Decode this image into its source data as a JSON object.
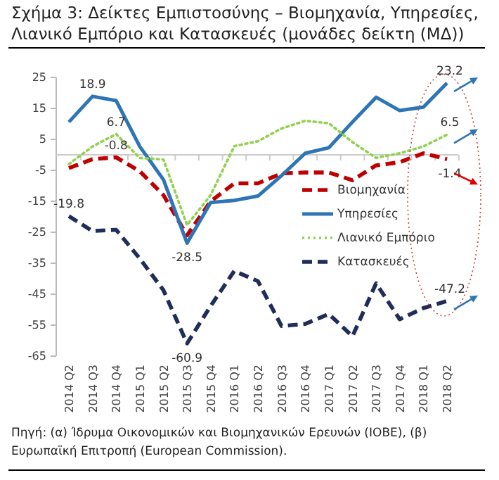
{
  "chart_data": {
    "type": "line",
    "title": "Σχήμα 3: Δείκτες Εμπιστοσύνης – Βιομηχανία, Υπηρεσίες, Λιανικό Εμπόριο και Κατασκευές (μονάδες δείκτη (ΜΔ))",
    "categories": [
      "2014 Q2",
      "2014 Q3",
      "2014 Q4",
      "2015 Q1",
      "2015 Q2",
      "2015 Q3",
      "2015 Q4",
      "2016 Q1",
      "2016 Q2",
      "2016 Q3",
      "2016 Q4",
      "2017 Q1",
      "2017 Q2",
      "2017 Q3",
      "2017 Q4",
      "2018 Q1",
      "2018 Q2"
    ],
    "series": [
      {
        "name": "Βιομηχανία",
        "color": "#c00000",
        "line_style": "dashed",
        "values": [
          -4.3,
          -1.4,
          -0.8,
          -5.3,
          -13,
          -26,
          -15,
          -9.2,
          -9.2,
          -6,
          -5.7,
          -5.7,
          -8.2,
          -3.4,
          -2.4,
          0.5,
          -1.4
        ],
        "value_labels": [
          null,
          null,
          "-0.8",
          null,
          null,
          null,
          null,
          null,
          null,
          null,
          null,
          null,
          null,
          null,
          null,
          null,
          "-1.4"
        ]
      },
      {
        "name": "Υπηρεσίες",
        "color": "#2e75b6",
        "line_style": "solid",
        "values": [
          10.6,
          18.9,
          17.5,
          2.7,
          -8,
          -28.5,
          -15.4,
          -14.7,
          -13.3,
          -6.7,
          0.5,
          2.3,
          10.6,
          18.6,
          14.3,
          15.4,
          23.2
        ],
        "value_labels": [
          null,
          "18.9",
          null,
          null,
          null,
          "-28.5",
          null,
          null,
          null,
          null,
          null,
          null,
          null,
          null,
          null,
          null,
          "23.2"
        ]
      },
      {
        "name": "Λιανικό Εμπόριο",
        "color": "#92d050",
        "line_style": "dotted",
        "values": [
          -3,
          2.7,
          6.7,
          -1,
          -1.5,
          -22.7,
          -13,
          2.8,
          4.4,
          8.5,
          11,
          10.2,
          4.1,
          -1,
          0.5,
          2.7,
          6.5
        ],
        "value_labels": [
          null,
          null,
          "6.7",
          null,
          null,
          null,
          null,
          null,
          null,
          null,
          null,
          null,
          null,
          null,
          null,
          null,
          "6.5"
        ]
      },
      {
        "name": "Κατασκευές",
        "color": "#1f2d5a",
        "line_style": "dashed",
        "values": [
          -19.8,
          -24.6,
          -24.2,
          -33.5,
          -43.7,
          -60.9,
          -48.8,
          -37.5,
          -40.8,
          -55.3,
          -54.6,
          -51.4,
          -58.6,
          -41.5,
          -53.1,
          -49.5,
          -47.2
        ],
        "value_labels": [
          "-19.8",
          null,
          null,
          null,
          null,
          "-60.9",
          null,
          null,
          null,
          null,
          null,
          null,
          null,
          null,
          null,
          null,
          "-47.2"
        ]
      }
    ],
    "ylim": [
      -65,
      25
    ],
    "yticks": [
      25,
      15,
      5,
      -5,
      -15,
      -25,
      -35,
      -45,
      -55,
      -65
    ],
    "grid": false,
    "legend": "right",
    "annotations": [
      "Πηγή: (α) Ίδρυμα Οικονομικών και Βιομηχανικών Ερευνών (ΙΟΒΕ), (β) Ευρωπαϊκή Επιτροπή (European Commission)."
    ]
  }
}
